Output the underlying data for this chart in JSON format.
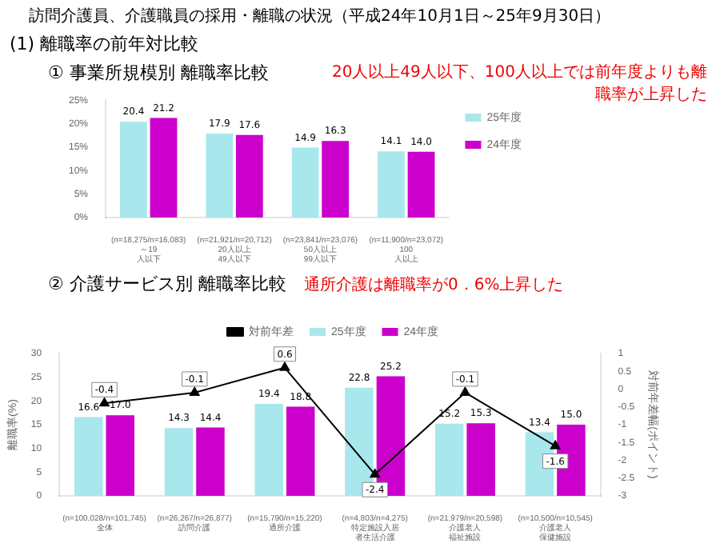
{
  "chart_data": [
    {
      "type": "bar",
      "title": "① 事業所規模別 離職率比較",
      "annotations": [
        "訪問介護員、介護職員の採用・離職の状況（平成24年10月1日～25年9月30日）",
        "(1) 離職率の前年対比較",
        "20人以上49人以下、100人以上では前年度よりも離職率が上昇した"
      ],
      "categories": [
        "(n=18,275/n=16,083) ～19人以下",
        "(n=21,921/n=20,712) 20人以上49人以下",
        "(n=23,841/n=23,076) 50人以上99人以下",
        "(n=11,900/n=23,072) 100人以上"
      ],
      "series": [
        {
          "name": "25年度",
          "color": "#a8e8ec",
          "values": [
            20.4,
            17.9,
            14.9,
            14.1
          ],
          "value_labels": [
            "20.4",
            "17.9",
            "14.9",
            "14.1"
          ]
        },
        {
          "name": "24年度",
          "color": "#cc00cc",
          "values": [
            21.2,
            17.6,
            16.3,
            14.0
          ],
          "value_labels": [
            "21.2",
            "17.6",
            "16.3",
            "14.0"
          ]
        }
      ],
      "ylim": [
        0,
        25
      ],
      "yticks": [
        {
          "value": 0,
          "label": "0%"
        },
        {
          "value": 5,
          "label": "5%"
        },
        {
          "value": 10,
          "label": "10%"
        },
        {
          "value": 15,
          "label": "15%"
        },
        {
          "value": 20,
          "label": "20%"
        },
        {
          "value": 25,
          "label": "25%"
        }
      ],
      "legend": "top right"
    },
    {
      "type": "bar",
      "title": "② 介護サービス別 離職率比較",
      "annotations": [
        "通所介護は離職率が0．6%上昇した"
      ],
      "ylabel": "離職率(%)",
      "y2label": "対前年差幅(ポイント)",
      "categories": [
        "(n=100,028/n=101,745) 全体",
        "(n=26,267/n=26,877) 訪問介護",
        "(n=15,790/n=15,220) 通所介護",
        "(n=4,803/n=4,275) 特定施設入居者生活介護",
        "(n=21,979/n=20,598) 介護老人福祉施設",
        "(n=10,500/n=10,545) 介護老人保健施設"
      ],
      "series": [
        {
          "name": "25年度",
          "color": "#a8e8ec",
          "values": [
            16.6,
            14.3,
            19.4,
            22.8,
            15.2,
            13.4
          ],
          "value_labels": [
            "16.6",
            "14.3",
            "19.4",
            "22.8",
            "15.2",
            "13.4"
          ]
        },
        {
          "name": "24年度",
          "color": "#cc00cc",
          "values": [
            17.0,
            14.4,
            18.8,
            25.2,
            15.3,
            15.0
          ],
          "value_labels": [
            "17.0",
            "14.4",
            "18.8",
            "25.2",
            "15.3",
            "15.0"
          ]
        },
        {
          "name": "対前年差",
          "type": "line",
          "axis": "y2",
          "color": "#000000",
          "marker": "triangle",
          "values": [
            -0.4,
            -0.1,
            0.6,
            -2.4,
            -0.1,
            -1.6
          ],
          "value_labels": [
            "-0.4",
            "-0.1",
            "0.6",
            "-2.4",
            "-0.1",
            "-1.6"
          ]
        }
      ],
      "ylim": [
        0,
        30
      ],
      "yticks": [
        0,
        5,
        10,
        15,
        20,
        25,
        30
      ],
      "y2lim": [
        -3,
        1
      ],
      "y2ticks": [
        -3,
        -2.5,
        -2,
        -1.5,
        -1,
        -0.5,
        0,
        0.5,
        1
      ],
      "legend": "top"
    }
  ]
}
